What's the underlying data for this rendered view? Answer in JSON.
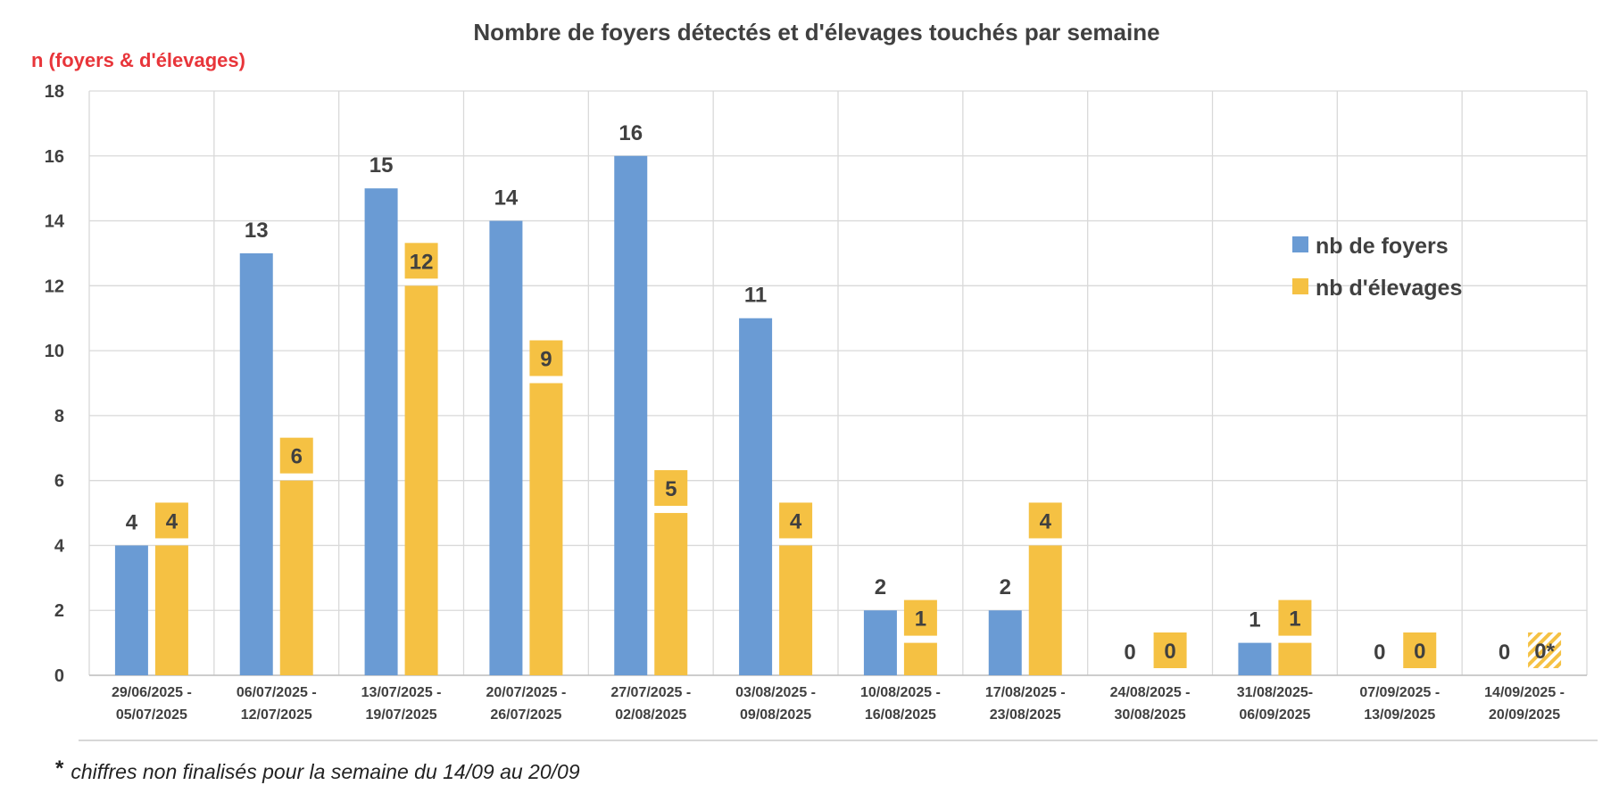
{
  "chart_data": {
    "type": "bar",
    "title": "Nombre de foyers détectés et d'élevages touchés par semaine",
    "ylabel": "n (foyers & d'élevages)",
    "xlabel": "",
    "ylim": [
      0,
      18
    ],
    "yticks": [
      0,
      2,
      4,
      6,
      8,
      10,
      12,
      14,
      16,
      18
    ],
    "grid": true,
    "legend_position": "right",
    "categories": [
      [
        "29/06/2025 -",
        "05/07/2025"
      ],
      [
        "06/07/2025 -",
        "12/07/2025"
      ],
      [
        "13/07/2025 -",
        "19/07/2025"
      ],
      [
        "20/07/2025 -",
        "26/07/2025"
      ],
      [
        "27/07/2025 -",
        "02/08/2025"
      ],
      [
        "03/08/2025 -",
        "09/08/2025"
      ],
      [
        "10/08/2025 -",
        "16/08/2025"
      ],
      [
        "17/08/2025 -",
        "23/08/2025"
      ],
      [
        "24/08/2025 -",
        "30/08/2025"
      ],
      [
        "31/08/2025-",
        "06/09/2025"
      ],
      [
        "07/09/2025 -",
        "13/09/2025"
      ],
      [
        "14/09/2025 -",
        "20/09/2025"
      ]
    ],
    "series": [
      {
        "name": "nb de foyers",
        "color": "#6a9bd4",
        "values": [
          4,
          13,
          15,
          14,
          16,
          11,
          2,
          2,
          0,
          1,
          0,
          0
        ],
        "labels": [
          "4",
          "13",
          "15",
          "14",
          "16",
          "11",
          "2",
          "2",
          "0",
          "1",
          "0",
          "0"
        ]
      },
      {
        "name": "nb  d'élevages",
        "color": "#f5c143",
        "values": [
          4,
          6,
          12,
          9,
          5,
          4,
          1,
          4,
          0,
          1,
          0,
          0
        ],
        "labels": [
          "4",
          "6",
          "12",
          "9",
          "5",
          "4",
          "1",
          "4",
          "0",
          "1",
          "0",
          "0*"
        ]
      }
    ],
    "hatched_label_index": 11
  },
  "footnote": {
    "star": "*",
    "text": "chiffres non finalisés pour la semaine du 14/09 au 20/09"
  }
}
